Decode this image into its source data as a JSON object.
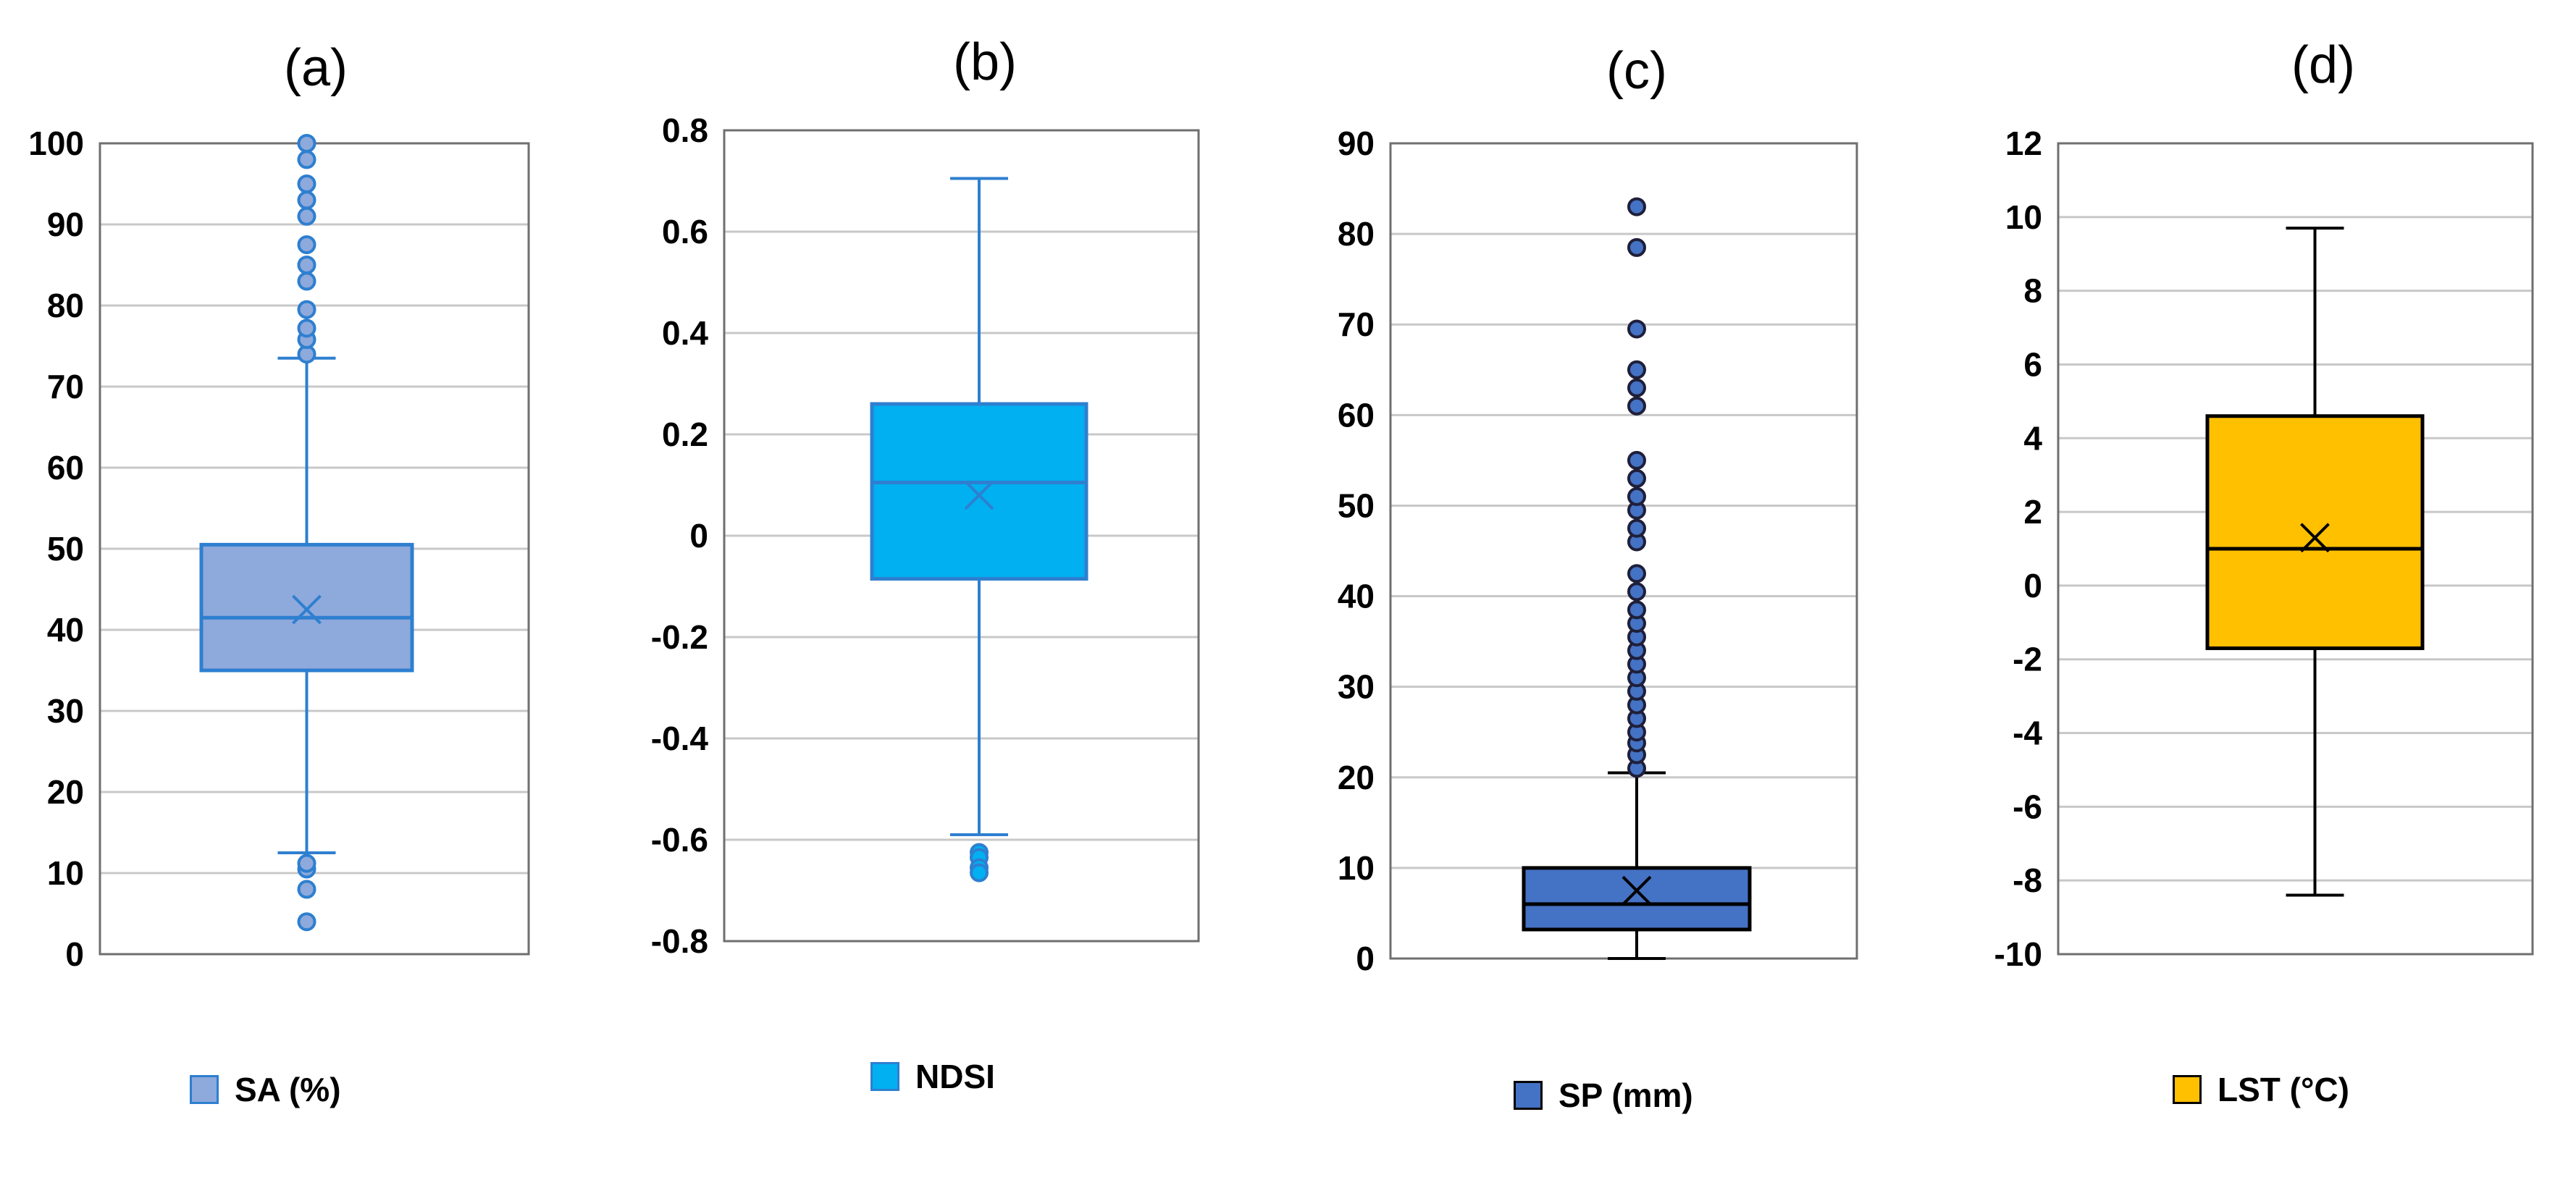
{
  "chart_data": [
    {
      "type": "box",
      "panel_label": "(a)",
      "series_name": "SA (%)",
      "fill_color": "#8EA9DB",
      "line_color": "#2E7FD0",
      "ylim": [
        0,
        100
      ],
      "yticks": [
        0,
        10,
        20,
        30,
        40,
        50,
        60,
        70,
        80,
        90,
        100
      ],
      "ytick_labels": [
        "0",
        "10",
        "20",
        "30",
        "40",
        "50",
        "60",
        "70",
        "80",
        "90",
        "100"
      ],
      "whisker_low": 12.5,
      "q1": 35,
      "median": 41.5,
      "q3": 50.5,
      "whisker_high": 73.5,
      "mean": 42.5,
      "outliers": [
        4,
        8,
        10.5,
        11.2,
        74,
        75.8,
        77.2,
        79.5,
        83,
        85,
        87.5,
        91,
        93,
        95,
        98,
        100
      ]
    },
    {
      "type": "box",
      "panel_label": "(b)",
      "series_name": "NDSI",
      "fill_color": "#00B0F0",
      "line_color": "#2E7FD0",
      "ylim": [
        -0.8,
        0.8
      ],
      "yticks": [
        -0.8,
        -0.6,
        -0.4,
        -0.2,
        0,
        0.2,
        0.4,
        0.6,
        0.8
      ],
      "ytick_labels": [
        "-0.8",
        "-0.6",
        "-0.4",
        "-0.2",
        "0",
        "0.2",
        "0.4",
        "0.6",
        "0.8"
      ],
      "whisker_low": -0.59,
      "q1": -0.085,
      "median": 0.105,
      "q3": 0.26,
      "whisker_high": 0.705,
      "mean": 0.08,
      "outliers": [
        -0.625,
        -0.635,
        -0.655,
        -0.665
      ]
    },
    {
      "type": "box",
      "panel_label": "(c)",
      "series_name": "SP (mm)",
      "fill_color": "#4472C4",
      "line_color": "#000000",
      "ylim": [
        0,
        90
      ],
      "yticks": [
        0,
        10,
        20,
        30,
        40,
        50,
        60,
        70,
        80,
        90
      ],
      "ytick_labels": [
        "0",
        "10",
        "20",
        "30",
        "40",
        "50",
        "60",
        "70",
        "80",
        "90"
      ],
      "whisker_low": 0,
      "q1": 3.2,
      "median": 6,
      "q3": 10,
      "whisker_high": 20.5,
      "mean": 7.5,
      "outliers": [
        21,
        22.5,
        23.8,
        25,
        26.5,
        28,
        29.5,
        31,
        32.5,
        34,
        35.5,
        37,
        38.5,
        40.5,
        42.5,
        46,
        47.5,
        49.5,
        51,
        53,
        55,
        61,
        63,
        65,
        69.5,
        78.5,
        83
      ]
    },
    {
      "type": "box",
      "panel_label": "(d)",
      "series_name": "LST (°C)",
      "fill_color": "#FFC000",
      "line_color": "#000000",
      "ylim": [
        -10,
        12
      ],
      "yticks": [
        -10,
        -8,
        -6,
        -4,
        -2,
        0,
        2,
        4,
        6,
        8,
        10,
        12
      ],
      "ytick_labels": [
        "-10",
        "-8",
        "-6",
        "-4",
        "-2",
        "0",
        "2",
        "4",
        "6",
        "8",
        "10",
        "12"
      ],
      "whisker_low": -8.4,
      "q1": -1.7,
      "median": 1,
      "q3": 4.6,
      "whisker_high": 9.7,
      "mean": 1.3,
      "outliers": []
    }
  ]
}
